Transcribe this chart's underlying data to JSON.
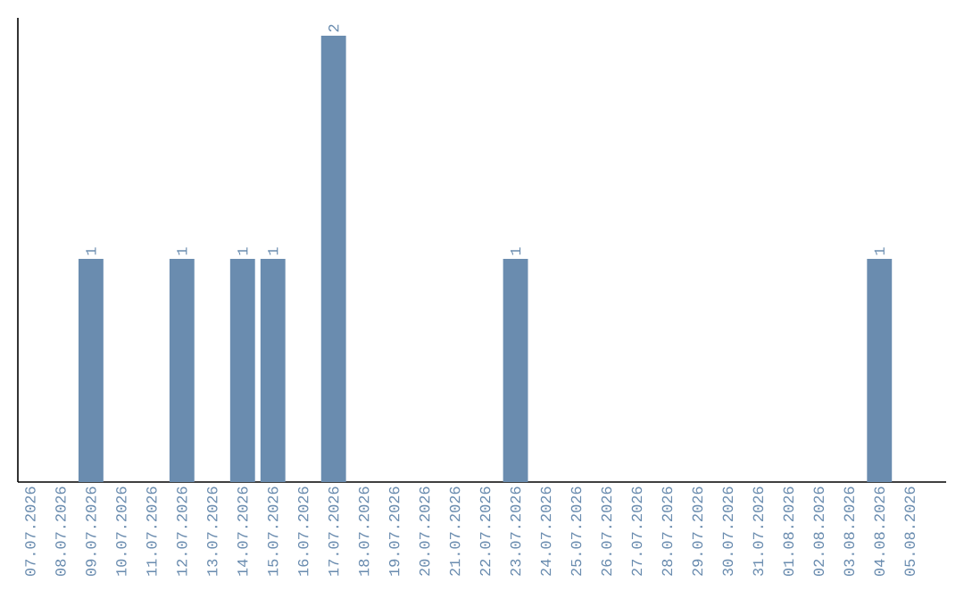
{
  "chart_data": {
    "type": "bar",
    "categories": [
      "07.07.2026",
      "08.07.2026",
      "09.07.2026",
      "10.07.2026",
      "11.07.2026",
      "12.07.2026",
      "13.07.2026",
      "14.07.2026",
      "15.07.2026",
      "16.07.2026",
      "17.07.2026",
      "18.07.2026",
      "19.07.2026",
      "20.07.2026",
      "21.07.2026",
      "22.07.2026",
      "23.07.2026",
      "24.07.2026",
      "25.07.2026",
      "26.07.2026",
      "27.07.2026",
      "28.07.2026",
      "29.07.2026",
      "30.07.2026",
      "31.07.2026",
      "01.08.2026",
      "02.08.2026",
      "03.08.2026",
      "04.08.2026",
      "05.08.2026"
    ],
    "values": [
      0,
      0,
      1,
      0,
      0,
      1,
      0,
      1,
      1,
      0,
      2,
      0,
      0,
      0,
      0,
      0,
      1,
      0,
      0,
      0,
      0,
      0,
      0,
      0,
      0,
      0,
      0,
      0,
      1,
      0
    ],
    "value_labels": [
      null,
      null,
      "1",
      null,
      null,
      "1",
      null,
      "1",
      "1",
      null,
      "2",
      null,
      null,
      null,
      null,
      null,
      "1",
      null,
      null,
      null,
      null,
      null,
      null,
      null,
      null,
      null,
      null,
      null,
      "1",
      null
    ],
    "color": "#6a8caf",
    "ylim": [
      0,
      2.08
    ],
    "tick_labels": "x"
  }
}
